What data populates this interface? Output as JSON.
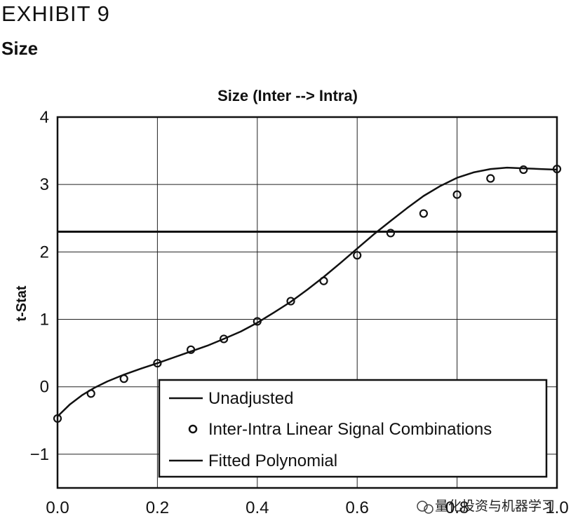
{
  "header": {
    "exhibit": "EXHIBIT 9",
    "subtitle": "Size"
  },
  "watermark": "量化投资与机器学习",
  "colors": {
    "line": "#111111",
    "grid": "#222222",
    "background": "#ffffff"
  },
  "chart_data": {
    "type": "line",
    "title": "Size (Inter --> Intra)",
    "xlabel": "",
    "ylabel": "t-Stat",
    "xlim": [
      0.0,
      1.0
    ],
    "ylim": [
      -1.5,
      4.0
    ],
    "xticks": [
      "0.0",
      "0.2",
      "0.4",
      "0.6",
      "0.8",
      "1.0"
    ],
    "yticks": [
      "4",
      "3",
      "2",
      "1",
      "0",
      "−1"
    ],
    "grid": true,
    "legend_position": "bottom-right",
    "series": [
      {
        "name": "Unadjusted",
        "kind": "hline",
        "y": 2.3
      },
      {
        "name": "Inter-Intra Linear Signal Combinations",
        "kind": "markers",
        "x": [
          0.0,
          0.067,
          0.133,
          0.2,
          0.267,
          0.333,
          0.4,
          0.467,
          0.533,
          0.6,
          0.667,
          0.733,
          0.8,
          0.867,
          0.933,
          1.0
        ],
        "y": [
          -0.47,
          -0.1,
          0.12,
          0.35,
          0.55,
          0.71,
          0.97,
          1.27,
          1.57,
          1.95,
          2.28,
          2.57,
          2.85,
          3.09,
          3.22,
          3.23
        ]
      },
      {
        "name": "Fitted Polynomial",
        "kind": "line",
        "x": [
          0.0,
          0.025,
          0.05,
          0.075,
          0.1,
          0.133,
          0.167,
          0.2,
          0.25,
          0.3,
          0.333,
          0.367,
          0.4,
          0.433,
          0.467,
          0.5,
          0.533,
          0.567,
          0.6,
          0.633,
          0.667,
          0.7,
          0.733,
          0.767,
          0.8,
          0.833,
          0.867,
          0.9,
          0.933,
          0.967,
          1.0
        ],
        "y": [
          -0.44,
          -0.26,
          -0.12,
          -0.01,
          0.08,
          0.18,
          0.27,
          0.35,
          0.48,
          0.61,
          0.71,
          0.82,
          0.95,
          1.1,
          1.26,
          1.44,
          1.63,
          1.84,
          2.05,
          2.26,
          2.46,
          2.65,
          2.83,
          2.98,
          3.1,
          3.18,
          3.23,
          3.25,
          3.24,
          3.23,
          3.22
        ]
      }
    ]
  }
}
